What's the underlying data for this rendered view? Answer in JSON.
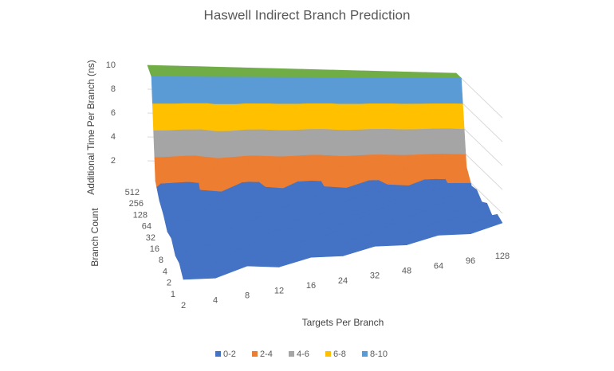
{
  "chart_data": {
    "type": "surface",
    "title": "Haswell Indirect Branch Prediction",
    "x_label": "Targets Per Branch",
    "y_label": "Branch Count",
    "z_label": "Additional Time Per Branch (ns)",
    "categories": [
      "2",
      "4",
      "8",
      "12",
      "16",
      "24",
      "32",
      "48",
      "64",
      "96",
      "128"
    ],
    "y_categories": [
      "1",
      "2",
      "4",
      "8",
      "16",
      "32",
      "64",
      "128",
      "256",
      "512"
    ],
    "values": [
      [
        0.6,
        0.3,
        0.9,
        0.4,
        0.8,
        0.5,
        0.9,
        0.6,
        1.0,
        0.7,
        1.2
      ],
      [
        1.0,
        0.5,
        1.1,
        0.6,
        1.2,
        0.7,
        1.3,
        0.8,
        1.4,
        1.0,
        1.5
      ],
      [
        0.7,
        1.3,
        0.5,
        1.2,
        0.6,
        1.1,
        0.6,
        1.3,
        0.8,
        1.2,
        1.0
      ],
      [
        1.2,
        0.6,
        1.4,
        0.7,
        1.3,
        0.8,
        1.4,
        0.9,
        1.5,
        1.1,
        1.6
      ],
      [
        0.8,
        1.4,
        0.7,
        1.5,
        0.9,
        1.4,
        1.0,
        1.5,
        1.1,
        1.6,
        1.3
      ],
      [
        1.3,
        0.9,
        1.6,
        1.0,
        1.5,
        1.1,
        1.7,
        1.2,
        1.8,
        1.4,
        1.9
      ],
      [
        1.5,
        1.2,
        1.8,
        1.3,
        1.7,
        1.4,
        1.9,
        1.5,
        1.9,
        1.6,
        1.8
      ],
      [
        2.2,
        1.0,
        3.5,
        1.6,
        2.8,
        1.4,
        3.2,
        1.8,
        2.9,
        1.5,
        3.0
      ],
      [
        10,
        10,
        10,
        10,
        10,
        10,
        10,
        10,
        10,
        10,
        10
      ],
      [
        10,
        10,
        10,
        10,
        10,
        10,
        10,
        10,
        10,
        10,
        10
      ]
    ],
    "zlim": [
      0,
      10
    ],
    "zticks": [
      2,
      4,
      6,
      8,
      10
    ],
    "series": [
      {
        "name": "0-2",
        "color": "#4472c4"
      },
      {
        "name": "2-4",
        "color": "#ed7d31"
      },
      {
        "name": "4-6",
        "color": "#a5a5a5"
      },
      {
        "name": "6-8",
        "color": "#ffc000"
      },
      {
        "name": "8-10",
        "color": "#5b9bd5"
      }
    ],
    "cap_color": "#70ad47",
    "grid": true
  }
}
